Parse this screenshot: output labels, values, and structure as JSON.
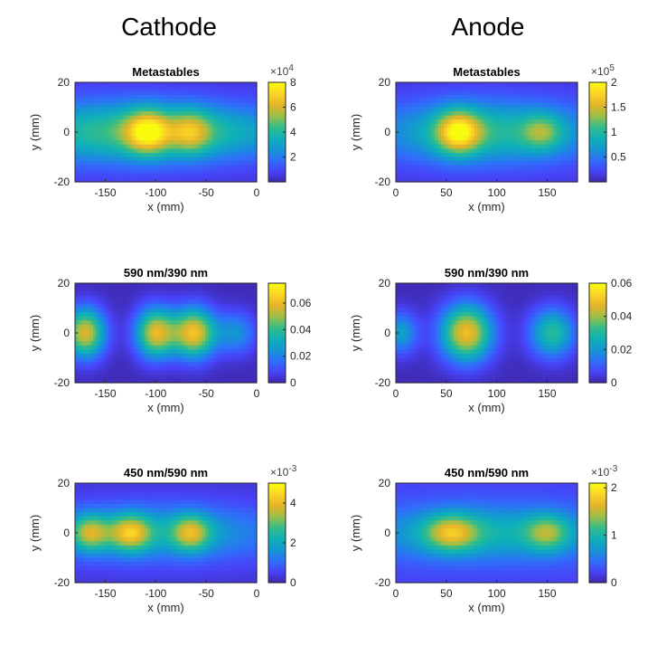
{
  "columns": {
    "left": "Cathode",
    "right": "Anode"
  },
  "colorscale": [
    "#3e26a8",
    "#4743f8",
    "#2f6ffa",
    "#1496d3",
    "#0fb1b7",
    "#33bc8a",
    "#9cbf49",
    "#e4b428",
    "#fbd327",
    "#f9fb0e"
  ],
  "chart_data": [
    {
      "type": "heatmap",
      "title": "Metastables",
      "column": "Cathode",
      "xlabel": "x (mm)",
      "ylabel": "y (mm)",
      "xlim": [
        -180,
        0
      ],
      "ylim": [
        -20,
        20
      ],
      "xticks": [
        "-150",
        "-100",
        "-50",
        "0"
      ],
      "xtick_values": [
        -150,
        -100,
        -50,
        0
      ],
      "yticks": [
        "20",
        "0",
        "-20"
      ],
      "ytick_values": [
        20,
        0,
        -20
      ],
      "colorbar": {
        "range": [
          0,
          8
        ],
        "ticks": [
          "2",
          "4",
          "6",
          "8"
        ],
        "tick_values": [
          2,
          4,
          6,
          8
        ],
        "exponent": "×10^4"
      },
      "background": 0.06,
      "blobs": [
        {
          "x": -150,
          "y": 0,
          "sx": 70,
          "sy": 9,
          "amp": 0.45
        },
        {
          "x": -108,
          "y": 0,
          "sx": 15,
          "sy": 6,
          "amp": 0.55
        },
        {
          "x": -65,
          "y": 0,
          "sx": 14,
          "sy": 6,
          "amp": 0.35
        },
        {
          "x": -30,
          "y": 0,
          "sx": 60,
          "sy": 8,
          "amp": 0.3
        }
      ]
    },
    {
      "type": "heatmap",
      "title": "Metastables",
      "column": "Anode",
      "xlabel": "x (mm)",
      "ylabel": "y (mm)",
      "xlim": [
        0,
        180
      ],
      "ylim": [
        -20,
        20
      ],
      "xticks": [
        "0",
        "50",
        "100",
        "150"
      ],
      "xtick_values": [
        0,
        50,
        100,
        150
      ],
      "yticks": [
        "20",
        "0",
        "-20"
      ],
      "ytick_values": [
        20,
        0,
        -20
      ],
      "colorbar": {
        "range": [
          0,
          2
        ],
        "ticks": [
          "0.5",
          "1",
          "1.5",
          "2"
        ],
        "tick_values": [
          0.5,
          1,
          1.5,
          2
        ],
        "exponent": "×10^5"
      },
      "background": 0.06,
      "blobs": [
        {
          "x": 90,
          "y": 0,
          "sx": 80,
          "sy": 9,
          "amp": 0.45
        },
        {
          "x": 62,
          "y": 0,
          "sx": 15,
          "sy": 6,
          "amp": 0.6
        },
        {
          "x": 145,
          "y": 0,
          "sx": 14,
          "sy": 5,
          "amp": 0.3
        }
      ]
    },
    {
      "type": "heatmap",
      "title": "590 nm/390 nm",
      "column": "Cathode",
      "xlabel": "x (mm)",
      "ylabel": "y (mm)",
      "xlim": [
        -180,
        0
      ],
      "ylim": [
        -20,
        20
      ],
      "xticks": [
        "-150",
        "-100",
        "-50",
        "0"
      ],
      "xtick_values": [
        -150,
        -100,
        -50,
        0
      ],
      "yticks": [
        "20",
        "0",
        "-20"
      ],
      "ytick_values": [
        20,
        0,
        -20
      ],
      "colorbar": {
        "range": [
          0,
          0.075
        ],
        "ticks": [
          "0",
          "0.02",
          "0.04",
          "0.06"
        ],
        "tick_values": [
          0,
          0.02,
          0.04,
          0.06
        ],
        "exponent": ""
      },
      "background": 0.02,
      "blobs": [
        {
          "x": -170,
          "y": 0,
          "sx": 14,
          "sy": 7,
          "amp": 0.75
        },
        {
          "x": -100,
          "y": 0,
          "sx": 14,
          "sy": 7,
          "amp": 0.75
        },
        {
          "x": -62,
          "y": 0,
          "sx": 15,
          "sy": 7,
          "amp": 0.8
        },
        {
          "x": -20,
          "y": 0,
          "sx": 14,
          "sy": 6,
          "amp": 0.3
        }
      ]
    },
    {
      "type": "heatmap",
      "title": "590 nm/390 nm",
      "column": "Anode",
      "xlabel": "x (mm)",
      "ylabel": "y (mm)",
      "xlim": [
        0,
        180
      ],
      "ylim": [
        -20,
        20
      ],
      "xticks": [
        "0",
        "50",
        "100",
        "150"
      ],
      "xtick_values": [
        0,
        50,
        100,
        150
      ],
      "yticks": [
        "20",
        "0",
        "-20"
      ],
      "ytick_values": [
        20,
        0,
        -20
      ],
      "colorbar": {
        "range": [
          0,
          0.06
        ],
        "ticks": [
          "0",
          "0.02",
          "0.04",
          "0.06"
        ],
        "tick_values": [
          0,
          0.02,
          0.04,
          0.06
        ],
        "exponent": ""
      },
      "background": 0.02,
      "blobs": [
        {
          "x": 5,
          "y": 0,
          "sx": 12,
          "sy": 6,
          "amp": 0.35
        },
        {
          "x": 70,
          "y": 0,
          "sx": 18,
          "sy": 8,
          "amp": 0.8
        },
        {
          "x": 155,
          "y": 0,
          "sx": 16,
          "sy": 7,
          "amp": 0.5
        }
      ]
    },
    {
      "type": "heatmap",
      "title": "450 nm/590 nm",
      "column": "Cathode",
      "xlabel": "x (mm)",
      "ylabel": "y (mm)",
      "xlim": [
        -180,
        0
      ],
      "ylim": [
        -20,
        20
      ],
      "xticks": [
        "-150",
        "-100",
        "-50",
        "0"
      ],
      "xtick_values": [
        -150,
        -100,
        -50,
        0
      ],
      "yticks": [
        "20",
        "0",
        "-20"
      ],
      "ytick_values": [
        20,
        0,
        -20
      ],
      "colorbar": {
        "range": [
          0,
          5
        ],
        "ticks": [
          "0",
          "2",
          "4"
        ],
        "tick_values": [
          0,
          2,
          4
        ],
        "exponent": "×10^-3"
      },
      "background": 0.06,
      "blobs": [
        {
          "x": -100,
          "y": 0,
          "sx": 90,
          "sy": 8,
          "amp": 0.35
        },
        {
          "x": -165,
          "y": 0,
          "sx": 13,
          "sy": 5,
          "amp": 0.45
        },
        {
          "x": -125,
          "y": 0,
          "sx": 14,
          "sy": 5,
          "amp": 0.5
        },
        {
          "x": -65,
          "y": 0,
          "sx": 13,
          "sy": 5,
          "amp": 0.45
        }
      ]
    },
    {
      "type": "heatmap",
      "title": "450 nm/590 nm",
      "column": "Anode",
      "xlabel": "x (mm)",
      "ylabel": "y (mm)",
      "xlim": [
        0,
        180
      ],
      "ylim": [
        -20,
        20
      ],
      "xticks": [
        "0",
        "50",
        "100",
        "150"
      ],
      "xtick_values": [
        0,
        50,
        100,
        150
      ],
      "yticks": [
        "20",
        "0",
        "-20"
      ],
      "ytick_values": [
        20,
        0,
        -20
      ],
      "colorbar": {
        "range": [
          0,
          2.1
        ],
        "ticks": [
          "0",
          "1",
          "2"
        ],
        "tick_values": [
          0,
          1,
          2
        ],
        "exponent": "×10^-3"
      },
      "background": 0.1,
      "blobs": [
        {
          "x": 90,
          "y": 0,
          "sx": 90,
          "sy": 8,
          "amp": 0.35
        },
        {
          "x": 55,
          "y": 0,
          "sx": 18,
          "sy": 5,
          "amp": 0.45
        },
        {
          "x": 150,
          "y": 0,
          "sx": 15,
          "sy": 5,
          "amp": 0.35
        }
      ]
    }
  ]
}
